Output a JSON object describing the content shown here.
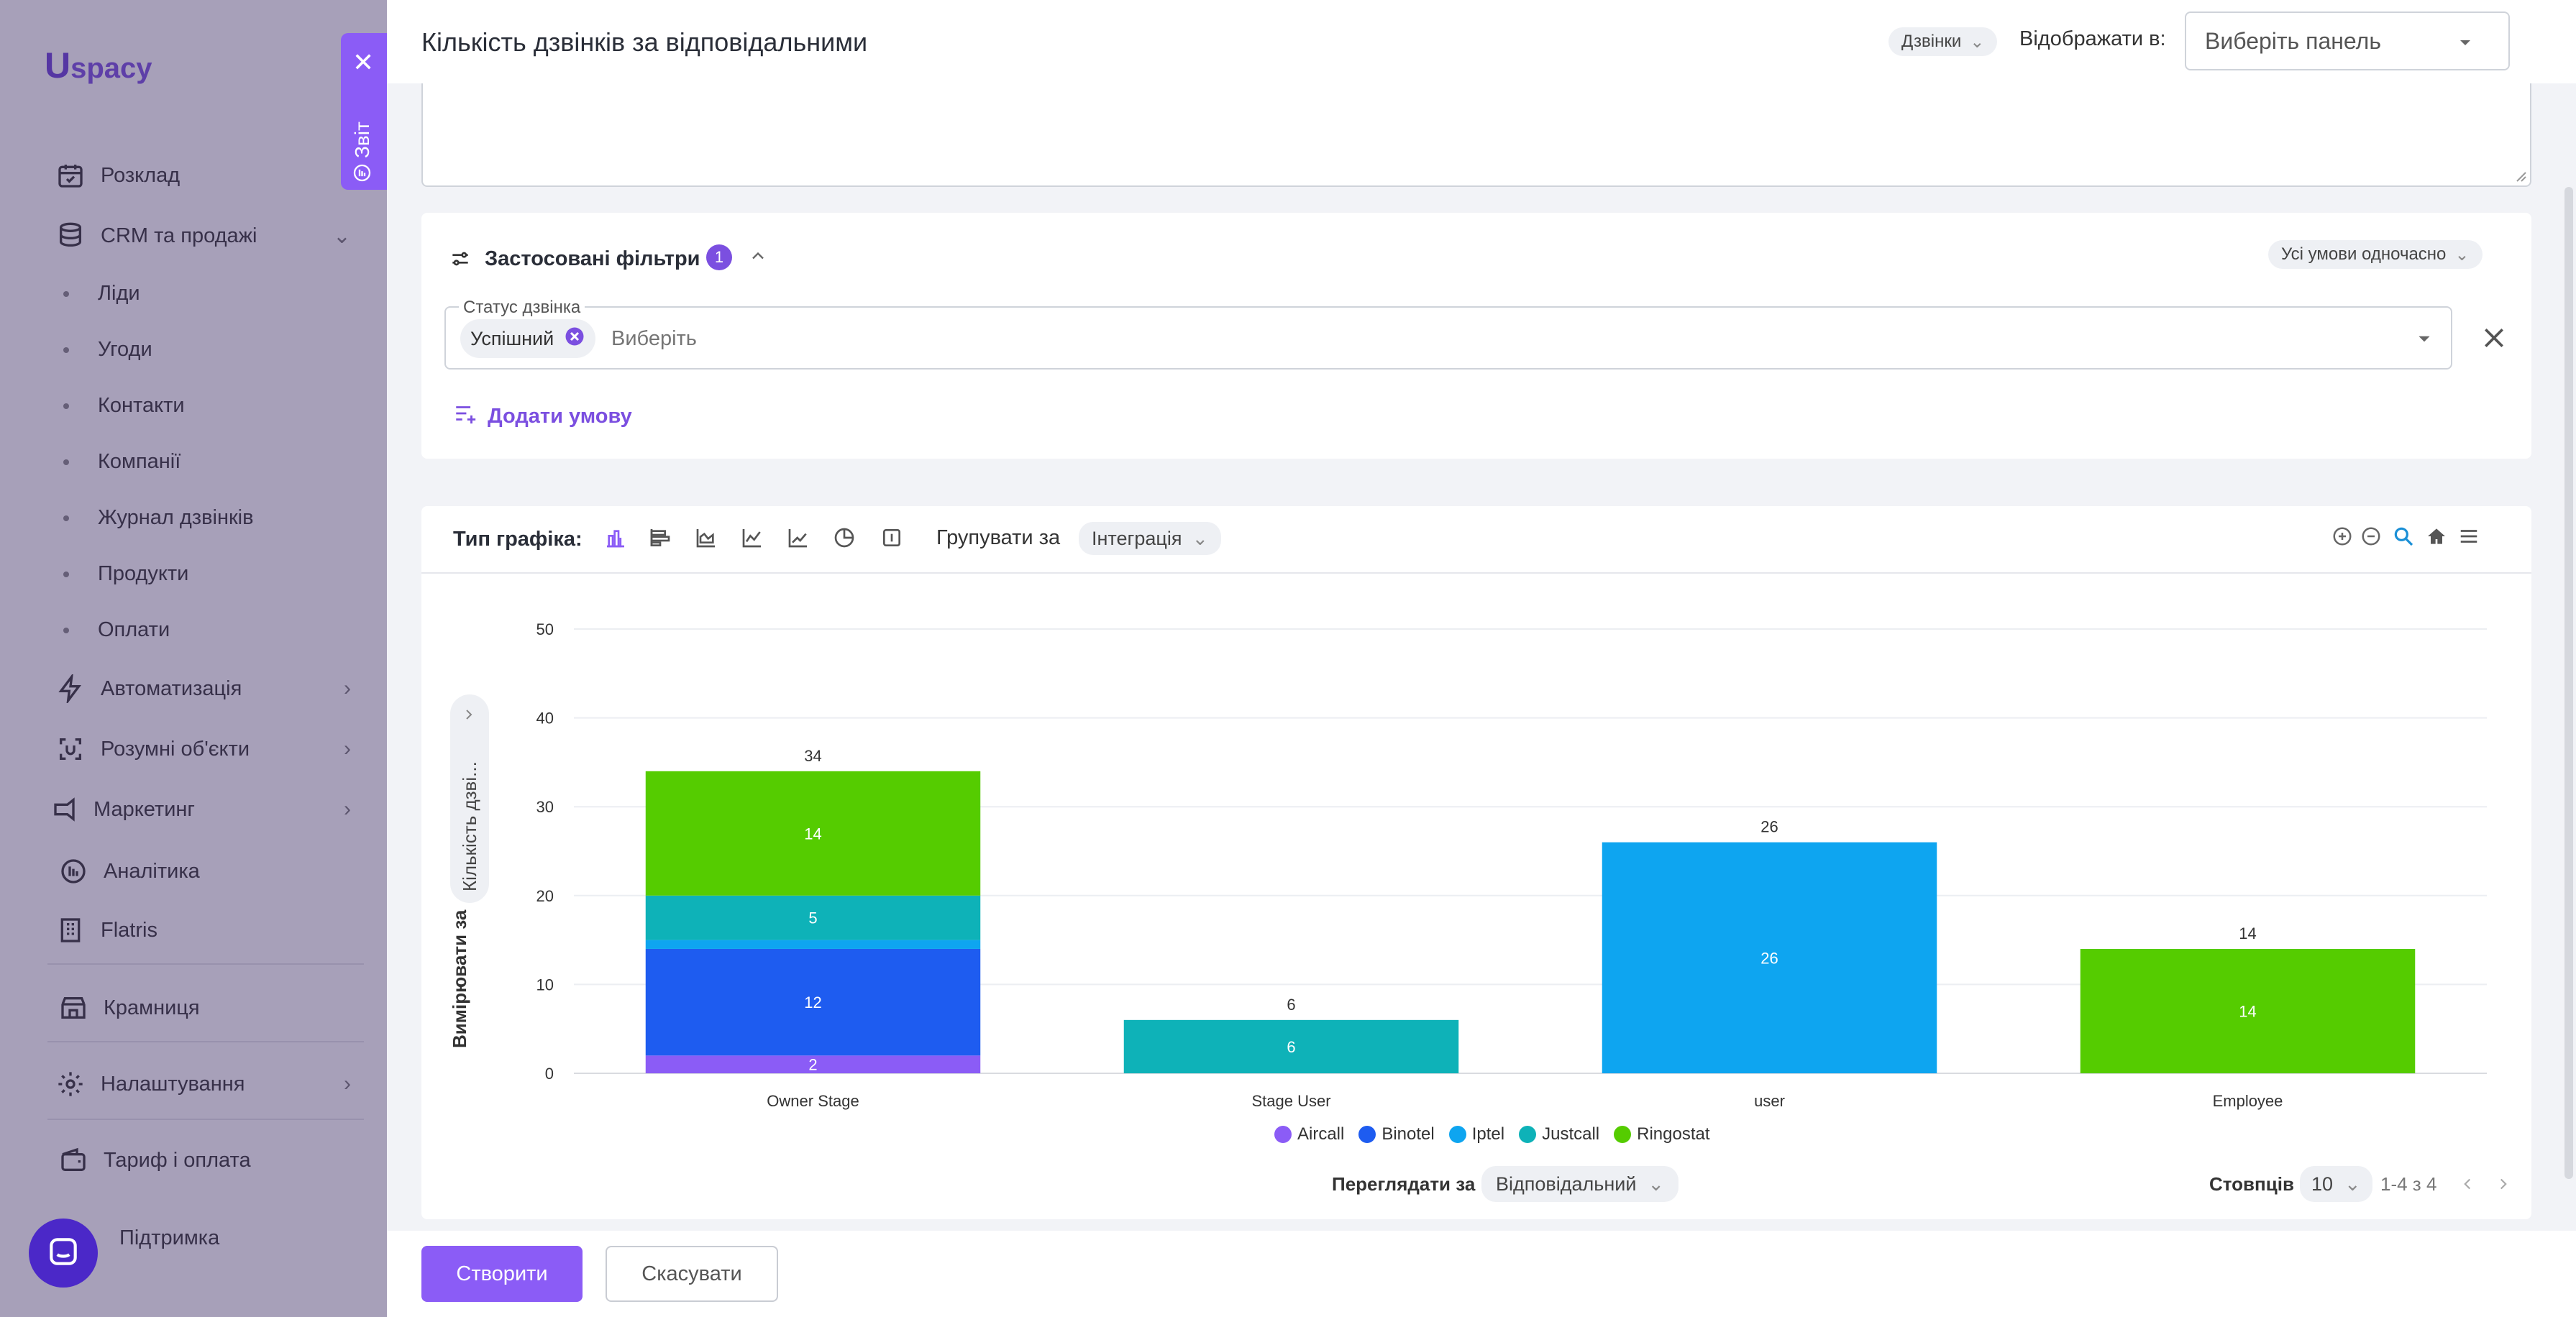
{
  "sidebar": {
    "logo": "spacy",
    "logo_mark": "U",
    "items": [
      {
        "label": "Розклад",
        "icon": "calendar-icon"
      },
      {
        "label": "CRM та продажі",
        "icon": "database-icon"
      },
      {
        "label": "Автоматизація",
        "icon": "lightning-icon"
      },
      {
        "label": "Розумні об'єкти",
        "icon": "smart-objects-icon"
      },
      {
        "label": "Маркетинг",
        "icon": "marketing-icon"
      },
      {
        "label": "Аналітика",
        "icon": "analytics-icon"
      },
      {
        "label": "Flatris",
        "icon": "building-icon"
      },
      {
        "label": "Крамниця",
        "icon": "store-icon"
      },
      {
        "label": "Налаштування",
        "icon": "gear-icon"
      },
      {
        "label": "Тариф і оплата",
        "icon": "wallet-icon"
      },
      {
        "label": "Підтримка",
        "icon": "support-icon"
      }
    ],
    "crm_sub": [
      "Ліди",
      "Угоди",
      "Контакти",
      "Компанії",
      "Журнал дзвінків",
      "Продукти",
      "Оплати"
    ]
  },
  "report_tab": {
    "label": "Звіт"
  },
  "header": {
    "title": "Кількість дзвінків за відповідальними",
    "source_chip": "Дзвінки",
    "display_in_label": "Відображати в:",
    "panel_select_placeholder": "Виберіть панель"
  },
  "filters": {
    "title": "Застосовані фільтри",
    "count": "1",
    "mode_chip": "Усі умови одночасно",
    "field_label": "Статус дзвінка",
    "selected_tag": "Успішний",
    "placeholder": "Виберіть",
    "add_condition": "Додати умову"
  },
  "chart_panel": {
    "chart_type_label": "Тип графіка:",
    "group_by_label": "Групувати за",
    "group_by_value": "Інтеграція",
    "measure_label": "Вимірювати за",
    "measure_value": "Кількість дзві...",
    "view_by_label": "Переглядати за",
    "view_by_value": "Відповідальний",
    "columns_label": "Стовпців",
    "columns_value": "10",
    "pagination": "1-4 з 4"
  },
  "chart_data": {
    "type": "bar",
    "stacked": true,
    "categories": [
      "Owner Stage",
      "Stage User",
      "user",
      "Employee"
    ],
    "ylim": [
      0,
      50
    ],
    "yticks": [
      0,
      10,
      20,
      30,
      40,
      50
    ],
    "grid": true,
    "legend_position": "bottom",
    "series": [
      {
        "name": "Aircall",
        "color": "#8b5cf6",
        "values": [
          2,
          0,
          0,
          0
        ]
      },
      {
        "name": "Binotel",
        "color": "#1e5cf0",
        "values": [
          12,
          0,
          0,
          0
        ]
      },
      {
        "name": "Iptel",
        "color": "#0ea5f0",
        "values": [
          1,
          0,
          26,
          0
        ]
      },
      {
        "name": "Justcall",
        "color": "#0eb2b8",
        "values": [
          5,
          6,
          0,
          0
        ]
      },
      {
        "name": "Ringostat",
        "color": "#55cc00",
        "values": [
          14,
          0,
          0,
          14
        ]
      }
    ],
    "totals": [
      34,
      6,
      26,
      14
    ]
  },
  "footer": {
    "create": "Створити",
    "cancel": "Скасувати"
  }
}
